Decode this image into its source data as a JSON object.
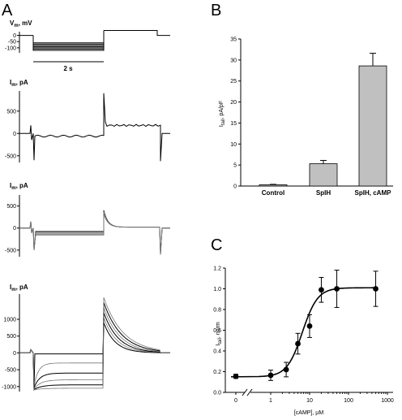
{
  "panels": {
    "a": "A",
    "b": "B",
    "c": "C"
  },
  "chart_data": [
    {
      "type": "line",
      "panel": "A",
      "traces": [
        {
          "ylabel": "V",
          "ylabel_sub": "m",
          "ylabel_unit": ", mV",
          "yticks": [
            0,
            -50,
            -100
          ],
          "ylim": [
            -140,
            30
          ],
          "time_marker": "2 s",
          "step_levels_mV": [
            -60,
            -70,
            -80,
            -90,
            -100,
            -110,
            -120
          ],
          "holding_mV": 0,
          "post_step_mV": 40
        },
        {
          "ylabel": "I",
          "ylabel_sub": "m",
          "ylabel_unit": ", pA",
          "yticks": [
            500,
            0,
            -500
          ],
          "ylim": [
            -650,
            950
          ],
          "during_step_pA": -60,
          "tail_pA": 180
        },
        {
          "ylabel": "I",
          "ylabel_sub": "m",
          "ylabel_unit": ", pA",
          "yticks": [
            500,
            0,
            -500
          ],
          "ylim": [
            -650,
            750
          ],
          "during_step_pA": [
            -80,
            -100,
            -120,
            -140,
            -160
          ],
          "tail_peak_pA": 400
        },
        {
          "ylabel": "I",
          "ylabel_sub": "m",
          "ylabel_unit": ", pA",
          "yticks": [
            1000,
            500,
            0,
            -500,
            -1000
          ],
          "ylim": [
            -1150,
            1750
          ],
          "steady_state_pA": [
            -30,
            -300,
            -600,
            -800,
            -950,
            -1050
          ],
          "tail_peak_pA": [
            900,
            1050,
            1200,
            1350,
            1500,
            1650
          ]
        }
      ]
    },
    {
      "type": "bar",
      "panel": "B",
      "categories": [
        "Control",
        "SpIH",
        "SpIH, cAMP"
      ],
      "values": [
        0.3,
        5.3,
        28.6
      ],
      "errors": [
        0.1,
        0.8,
        3.0
      ],
      "ylabel": "I",
      "ylabel_sub": "tail",
      "ylabel_unit": ", pA/pF",
      "ylim": [
        0,
        35
      ],
      "yticks": [
        0,
        5,
        10,
        15,
        20,
        25,
        30,
        35
      ],
      "bar_color": "#c0c0c0"
    },
    {
      "type": "scatter",
      "panel": "C",
      "xlabel": "[cAMP], µM",
      "ylabel": "I",
      "ylabel_sub": "tail",
      "ylabel_unit": ", norm",
      "xscale": "log",
      "xlim": [
        1,
        1000
      ],
      "ylim": [
        0,
        1.2
      ],
      "yticks": [
        0.0,
        0.2,
        0.4,
        0.6,
        0.8,
        1.0,
        1.2
      ],
      "xtick_labels": [
        "0",
        "1",
        "10",
        "100",
        "1000"
      ],
      "axis_break": true,
      "points": [
        {
          "x": 0,
          "y": 0.155,
          "err": 0.02
        },
        {
          "x": 1,
          "y": 0.165,
          "err": 0.05
        },
        {
          "x": 2.5,
          "y": 0.22,
          "err": 0.07
        },
        {
          "x": 5,
          "y": 0.47,
          "err": 0.1
        },
        {
          "x": 10,
          "y": 0.64,
          "err": 0.11
        },
        {
          "x": 20,
          "y": 0.99,
          "err": 0.12
        },
        {
          "x": 50,
          "y": 1.0,
          "err": 0.18
        },
        {
          "x": 500,
          "y": 1.0,
          "err": 0.17
        }
      ],
      "fit_curve": {
        "bottom": 0.15,
        "top": 1.01,
        "ec50": 6.5,
        "hill": 2.2
      }
    }
  ]
}
